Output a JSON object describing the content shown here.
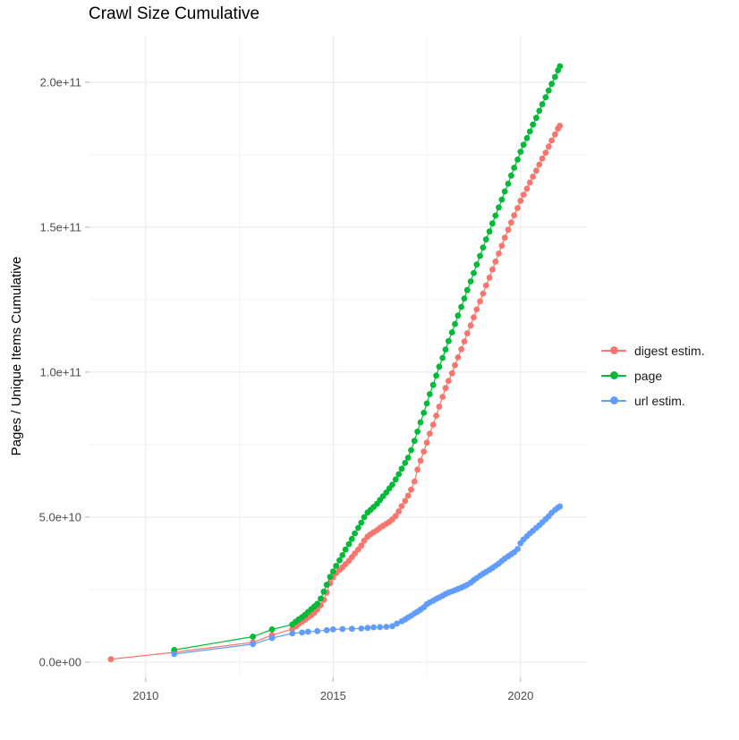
{
  "chart_data": {
    "type": "line",
    "title": "Crawl Size Cumulative",
    "xlabel": "",
    "ylabel": "Pages / Unique Items Cumulative",
    "value_unit": "1e9",
    "xlim": [
      2008.5,
      2021.77
    ],
    "ylim": [
      -5.25,
      216
    ],
    "grid": "on",
    "legend_position": "right",
    "x_ticks_major": [
      {
        "label": "2010",
        "value": 2010
      },
      {
        "label": "2015",
        "value": 2015
      },
      {
        "label": "2020",
        "value": 2020
      }
    ],
    "x_ticks_minor": [
      2012.5,
      2017.5
    ],
    "y_ticks_major": [
      {
        "label": "0.0e+00",
        "value": 0
      },
      {
        "label": "5.0e+10",
        "value": 50
      },
      {
        "label": "1.0e+11",
        "value": 100
      },
      {
        "label": "1.5e+11",
        "value": 150
      },
      {
        "label": "2.0e+11",
        "value": 200
      }
    ],
    "y_ticks_minor": [
      25,
      75,
      125,
      175
    ],
    "series": [
      {
        "name": "digest estim.",
        "color": "#F8766D",
        "points": [
          [
            2009.07,
            1.0
          ],
          [
            2010.76,
            3.4
          ],
          [
            2012.86,
            6.8
          ],
          [
            2013.37,
            9.3
          ],
          [
            2013.91,
            11.4
          ],
          [
            2014.0,
            12.3
          ],
          [
            2014.08,
            13.1
          ],
          [
            2014.17,
            13.9
          ],
          [
            2014.25,
            14.6
          ],
          [
            2014.33,
            15.4
          ],
          [
            2014.42,
            16.2
          ],
          [
            2014.5,
            17.1
          ],
          [
            2014.58,
            18.2
          ],
          [
            2014.67,
            19.6
          ],
          [
            2014.75,
            21.5
          ],
          [
            2014.83,
            24.0
          ],
          [
            2014.92,
            27.2
          ],
          [
            2015.0,
            29.2
          ],
          [
            2015.08,
            30.7
          ],
          [
            2015.17,
            31.8
          ],
          [
            2015.25,
            32.7
          ],
          [
            2015.33,
            33.8
          ],
          [
            2015.42,
            34.9
          ],
          [
            2015.5,
            36.2
          ],
          [
            2015.58,
            37.5
          ],
          [
            2015.67,
            38.8
          ],
          [
            2015.75,
            40.2
          ],
          [
            2015.83,
            41.9
          ],
          [
            2015.92,
            43.3
          ],
          [
            2016.0,
            44.1
          ],
          [
            2016.08,
            44.8
          ],
          [
            2016.17,
            45.5
          ],
          [
            2016.25,
            46.3
          ],
          [
            2016.33,
            47.0
          ],
          [
            2016.42,
            47.7
          ],
          [
            2016.5,
            48.4
          ],
          [
            2016.58,
            49.2
          ],
          [
            2016.67,
            50.4
          ],
          [
            2016.75,
            52.0
          ],
          [
            2016.83,
            53.8
          ],
          [
            2016.92,
            55.6
          ],
          [
            2017.0,
            57.4
          ],
          [
            2017.08,
            59.5
          ],
          [
            2017.17,
            62.3
          ],
          [
            2017.25,
            66.4
          ],
          [
            2017.33,
            69.5
          ],
          [
            2017.42,
            72.6
          ],
          [
            2017.5,
            75.7
          ],
          [
            2017.58,
            78.8
          ],
          [
            2017.67,
            81.9
          ],
          [
            2017.75,
            85.0
          ],
          [
            2017.83,
            88.1
          ],
          [
            2017.92,
            91.5
          ],
          [
            2018.0,
            94.5
          ],
          [
            2018.08,
            97.0
          ],
          [
            2018.17,
            99.6
          ],
          [
            2018.25,
            102.4
          ],
          [
            2018.33,
            105.1
          ],
          [
            2018.42,
            107.9
          ],
          [
            2018.5,
            110.6
          ],
          [
            2018.58,
            113.4
          ],
          [
            2018.67,
            116.1
          ],
          [
            2018.75,
            118.9
          ],
          [
            2018.83,
            121.6
          ],
          [
            2018.92,
            124.4
          ],
          [
            2019.0,
            127.1
          ],
          [
            2019.08,
            129.9
          ],
          [
            2019.17,
            132.6
          ],
          [
            2019.25,
            135.4
          ],
          [
            2019.33,
            138.1
          ],
          [
            2019.42,
            140.9
          ],
          [
            2019.5,
            143.6
          ],
          [
            2019.58,
            146.4
          ],
          [
            2019.67,
            149.1
          ],
          [
            2019.75,
            151.6
          ],
          [
            2019.83,
            154.1
          ],
          [
            2019.92,
            156.6
          ],
          [
            2020.0,
            159.1
          ],
          [
            2020.08,
            161.2
          ],
          [
            2020.17,
            163.3
          ],
          [
            2020.25,
            165.4
          ],
          [
            2020.33,
            167.4
          ],
          [
            2020.42,
            169.5
          ],
          [
            2020.5,
            171.6
          ],
          [
            2020.58,
            173.7
          ],
          [
            2020.67,
            175.7
          ],
          [
            2020.75,
            177.8
          ],
          [
            2020.83,
            179.9
          ],
          [
            2020.92,
            182.0
          ],
          [
            2021.0,
            184.0
          ],
          [
            2021.05,
            185.0
          ]
        ]
      },
      {
        "name": "page",
        "color": "#00BA38",
        "points": [
          [
            2010.76,
            4.2
          ],
          [
            2012.86,
            8.8
          ],
          [
            2013.37,
            11.3
          ],
          [
            2013.91,
            13.0
          ],
          [
            2014.0,
            13.9
          ],
          [
            2014.08,
            14.7
          ],
          [
            2014.17,
            15.5
          ],
          [
            2014.25,
            16.3
          ],
          [
            2014.33,
            17.3
          ],
          [
            2014.42,
            18.3
          ],
          [
            2014.5,
            19.2
          ],
          [
            2014.58,
            20.1
          ],
          [
            2014.67,
            21.9
          ],
          [
            2014.75,
            24.3
          ],
          [
            2014.83,
            26.7
          ],
          [
            2014.92,
            29.4
          ],
          [
            2015.0,
            31.3
          ],
          [
            2015.08,
            33.2
          ],
          [
            2015.17,
            35.1
          ],
          [
            2015.25,
            36.9
          ],
          [
            2015.33,
            38.8
          ],
          [
            2015.42,
            40.7
          ],
          [
            2015.5,
            42.5
          ],
          [
            2015.58,
            44.4
          ],
          [
            2015.67,
            46.3
          ],
          [
            2015.75,
            48.1
          ],
          [
            2015.83,
            50.0
          ],
          [
            2015.92,
            51.6
          ],
          [
            2016.0,
            52.5
          ],
          [
            2016.08,
            53.5
          ],
          [
            2016.17,
            54.6
          ],
          [
            2016.25,
            55.9
          ],
          [
            2016.33,
            57.2
          ],
          [
            2016.42,
            58.5
          ],
          [
            2016.5,
            59.9
          ],
          [
            2016.58,
            61.2
          ],
          [
            2016.67,
            63.0
          ],
          [
            2016.75,
            64.8
          ],
          [
            2016.83,
            66.7
          ],
          [
            2016.92,
            68.7
          ],
          [
            2017.0,
            70.5
          ],
          [
            2017.08,
            73.1
          ],
          [
            2017.17,
            76.3
          ],
          [
            2017.25,
            79.5
          ],
          [
            2017.33,
            82.7
          ],
          [
            2017.42,
            86.0
          ],
          [
            2017.5,
            89.2
          ],
          [
            2017.58,
            92.4
          ],
          [
            2017.67,
            95.6
          ],
          [
            2017.75,
            98.8
          ],
          [
            2017.83,
            101.9
          ],
          [
            2017.92,
            104.9
          ],
          [
            2018.0,
            107.8
          ],
          [
            2018.08,
            110.7
          ],
          [
            2018.17,
            113.7
          ],
          [
            2018.25,
            116.6
          ],
          [
            2018.33,
            119.5
          ],
          [
            2018.42,
            122.5
          ],
          [
            2018.5,
            125.4
          ],
          [
            2018.58,
            128.3
          ],
          [
            2018.67,
            131.3
          ],
          [
            2018.75,
            134.2
          ],
          [
            2018.83,
            137.1
          ],
          [
            2018.92,
            140.1
          ],
          [
            2019.0,
            143.0
          ],
          [
            2019.08,
            145.8
          ],
          [
            2019.17,
            148.5
          ],
          [
            2019.25,
            151.3
          ],
          [
            2019.33,
            154.0
          ],
          [
            2019.42,
            156.8
          ],
          [
            2019.5,
            159.5
          ],
          [
            2019.58,
            162.3
          ],
          [
            2019.67,
            165.0
          ],
          [
            2019.75,
            167.8
          ],
          [
            2019.83,
            170.5
          ],
          [
            2019.92,
            173.3
          ],
          [
            2020.0,
            176.0
          ],
          [
            2020.08,
            178.4
          ],
          [
            2020.17,
            180.7
          ],
          [
            2020.25,
            183.0
          ],
          [
            2020.33,
            185.4
          ],
          [
            2020.42,
            187.7
          ],
          [
            2020.5,
            190.1
          ],
          [
            2020.58,
            192.4
          ],
          [
            2020.67,
            194.8
          ],
          [
            2020.75,
            197.1
          ],
          [
            2020.83,
            199.4
          ],
          [
            2020.92,
            201.8
          ],
          [
            2021.0,
            204.1
          ],
          [
            2021.05,
            205.5
          ]
        ]
      },
      {
        "name": "url estim.",
        "color": "#619CFF",
        "points": [
          [
            2010.76,
            2.8
          ],
          [
            2012.86,
            6.2
          ],
          [
            2013.37,
            8.3
          ],
          [
            2013.91,
            9.9
          ],
          [
            2014.17,
            10.2
          ],
          [
            2014.33,
            10.5
          ],
          [
            2014.58,
            10.7
          ],
          [
            2014.83,
            11.0
          ],
          [
            2015.0,
            11.3
          ],
          [
            2015.25,
            11.4
          ],
          [
            2015.5,
            11.5
          ],
          [
            2015.75,
            11.6
          ],
          [
            2015.92,
            11.8
          ],
          [
            2016.08,
            12.0
          ],
          [
            2016.25,
            12.1
          ],
          [
            2016.42,
            12.2
          ],
          [
            2016.58,
            12.4
          ],
          [
            2016.7,
            13.3
          ],
          [
            2016.83,
            14.1
          ],
          [
            2016.92,
            14.7
          ],
          [
            2017.0,
            15.4
          ],
          [
            2017.08,
            16.0
          ],
          [
            2017.17,
            16.8
          ],
          [
            2017.25,
            17.4
          ],
          [
            2017.33,
            18.1
          ],
          [
            2017.42,
            18.9
          ],
          [
            2017.5,
            20.0
          ],
          [
            2017.58,
            20.6
          ],
          [
            2017.67,
            21.2
          ],
          [
            2017.75,
            21.8
          ],
          [
            2017.83,
            22.3
          ],
          [
            2017.92,
            22.9
          ],
          [
            2018.0,
            23.5
          ],
          [
            2018.08,
            24.0
          ],
          [
            2018.17,
            24.4
          ],
          [
            2018.25,
            24.8
          ],
          [
            2018.33,
            25.2
          ],
          [
            2018.42,
            25.7
          ],
          [
            2018.5,
            26.2
          ],
          [
            2018.58,
            26.7
          ],
          [
            2018.67,
            27.4
          ],
          [
            2018.75,
            28.3
          ],
          [
            2018.83,
            29.0
          ],
          [
            2018.92,
            29.8
          ],
          [
            2019.0,
            30.5
          ],
          [
            2019.08,
            31.1
          ],
          [
            2019.17,
            31.8
          ],
          [
            2019.25,
            32.5
          ],
          [
            2019.33,
            33.2
          ],
          [
            2019.42,
            34.0
          ],
          [
            2019.5,
            34.9
          ],
          [
            2019.58,
            35.7
          ],
          [
            2019.67,
            36.5
          ],
          [
            2019.75,
            37.2
          ],
          [
            2019.83,
            37.9
          ],
          [
            2019.92,
            39.0
          ],
          [
            2020.0,
            41.0
          ],
          [
            2020.08,
            42.3
          ],
          [
            2020.17,
            43.4
          ],
          [
            2020.25,
            44.4
          ],
          [
            2020.33,
            45.3
          ],
          [
            2020.42,
            46.3
          ],
          [
            2020.5,
            47.2
          ],
          [
            2020.58,
            48.2
          ],
          [
            2020.67,
            49.3
          ],
          [
            2020.75,
            50.3
          ],
          [
            2020.83,
            51.5
          ],
          [
            2020.92,
            52.5
          ],
          [
            2021.0,
            53.3
          ],
          [
            2021.05,
            53.7
          ]
        ]
      }
    ],
    "style_colors": {
      "grid_major": "#e8e8e8",
      "grid_minor": "#f3f3f3",
      "tick_mark": "#b3b3b3",
      "tick_text": "#4d4d4d"
    }
  }
}
